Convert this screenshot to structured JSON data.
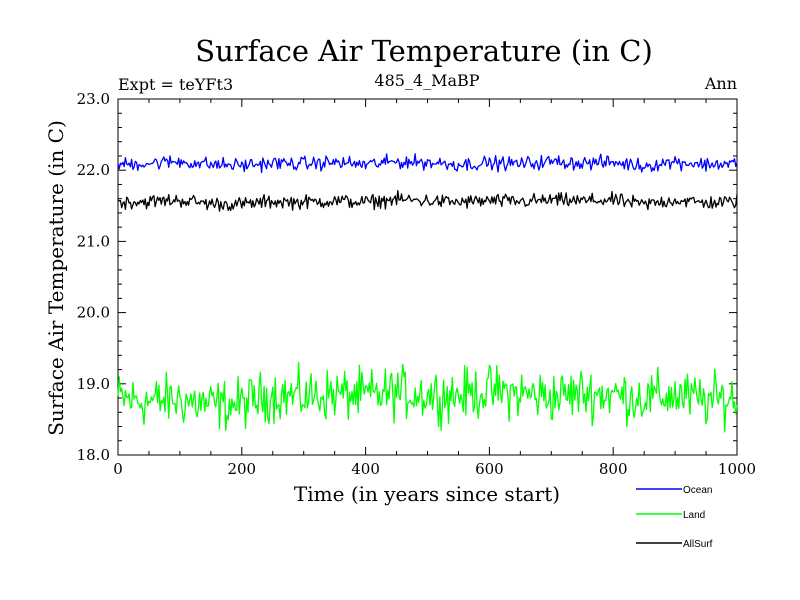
{
  "header": {
    "title": "Surface Air Temperature (in C)",
    "experiment": "Expt = teYFt3",
    "subtitle": "485_4_MaBP",
    "period": "Ann"
  },
  "chart_data": {
    "type": "line",
    "title": "Surface Air Temperature (in C)",
    "xlabel": "Time (in years since start)",
    "ylabel": "Surface Air Temperature (in C)",
    "xlim": [
      0,
      1000
    ],
    "ylim": [
      18.0,
      23.0
    ],
    "x_ticks": [
      0,
      200,
      400,
      600,
      800,
      1000
    ],
    "x_tick_labels": [
      "0",
      "200",
      "400",
      "600",
      "800",
      "1000"
    ],
    "y_ticks": [
      18.0,
      19.0,
      20.0,
      21.0,
      22.0,
      23.0
    ],
    "y_tick_labels": [
      "18.0",
      "19.0",
      "20.0",
      "21.0",
      "22.0",
      "23.0"
    ],
    "grid": false,
    "legend_position": "bottom-right",
    "series": [
      {
        "name": "Ocean",
        "color": "#0000ff",
        "x": [
          0,
          50,
          100,
          150,
          200,
          250,
          300,
          350,
          400,
          450,
          500,
          550,
          600,
          650,
          700,
          750,
          800,
          850,
          900,
          950,
          1000
        ],
        "values": [
          22.08,
          22.1,
          22.12,
          22.08,
          22.07,
          22.1,
          22.09,
          22.11,
          22.08,
          22.12,
          22.11,
          22.08,
          22.1,
          22.09,
          22.12,
          22.1,
          22.11,
          22.06,
          22.12,
          22.08,
          22.1
        ]
      },
      {
        "name": "Land",
        "color": "#00ff00",
        "x": [
          0,
          50,
          100,
          150,
          200,
          250,
          300,
          350,
          400,
          450,
          500,
          550,
          600,
          650,
          700,
          750,
          800,
          850,
          900,
          950,
          1000
        ],
        "values": [
          18.8,
          18.75,
          18.78,
          18.7,
          18.72,
          18.85,
          18.82,
          18.86,
          18.83,
          18.88,
          18.85,
          18.84,
          18.9,
          18.86,
          18.82,
          18.87,
          18.85,
          18.8,
          18.84,
          18.76,
          18.8
        ]
      },
      {
        "name": "AllSurf",
        "color": "#000000",
        "x": [
          0,
          50,
          100,
          150,
          200,
          250,
          300,
          350,
          400,
          450,
          500,
          550,
          600,
          650,
          700,
          750,
          800,
          850,
          900,
          950,
          1000
        ],
        "values": [
          21.55,
          21.56,
          21.58,
          21.53,
          21.52,
          21.56,
          21.55,
          21.57,
          21.55,
          21.59,
          21.57,
          21.55,
          21.57,
          21.56,
          21.58,
          21.57,
          21.58,
          21.52,
          21.58,
          21.54,
          21.56
        ]
      }
    ]
  }
}
